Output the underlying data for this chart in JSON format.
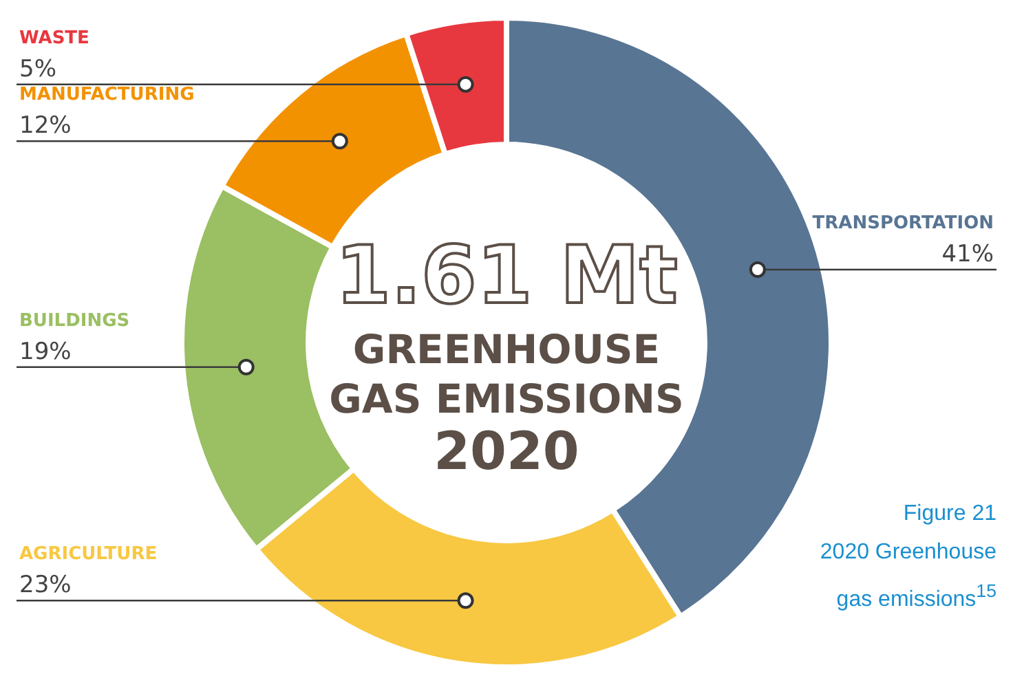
{
  "chart_data": {
    "type": "donut",
    "title": "1.61 Mt",
    "subtitle": "GREENHOUSE GAS EMISSIONS",
    "categories": [
      "TRANSPORTATION",
      "AGRICULTURE",
      "BUILDINGS",
      "MANUFACTURING",
      "WASTE"
    ],
    "values": [
      41,
      23,
      19,
      12,
      5
    ],
    "value_labels": [
      "41%",
      "23%",
      "19%",
      "12%",
      "5%"
    ],
    "colors": [
      "#587593",
      "#f8c842",
      "#9bbf63",
      "#f39200",
      "#e8383f"
    ],
    "annotations": [
      "2020",
      "Figure 21",
      "2020 Greenhouse gas emissions$^{15}$"
    ],
    "legend": false
  }
}
